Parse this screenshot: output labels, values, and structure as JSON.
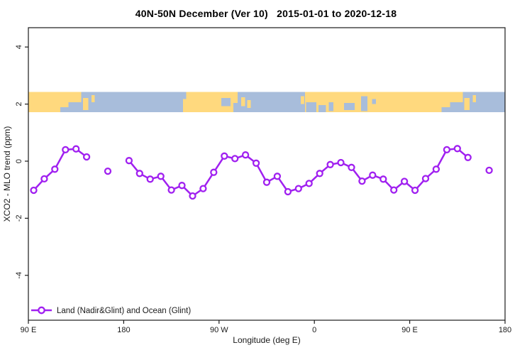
{
  "chart_data": {
    "type": "line",
    "title": "40N-50N December (Ver 10)   2015-01-01 to 2020-12-18",
    "xlabel": "Longitude (deg E)",
    "ylabel": "XCO2 - MLO trend (ppm)",
    "legend_label": "Land (Nadir&Glint) and Ocean (Glint)",
    "series_color": "#A020F0",
    "frame_color": "#1a1a1a",
    "x_axis": {
      "note": "axis wraps eastward from 90E through the dateline twice",
      "tick_lons": [
        90,
        180,
        270,
        360,
        450,
        540
      ],
      "tick_labels": [
        "90 E",
        "180",
        "90 W",
        "0",
        "90 E",
        "180"
      ],
      "lon_range": [
        90,
        540
      ]
    },
    "y_axis": {
      "tick_values": [
        4,
        2,
        0,
        -2,
        -4
      ],
      "tick_labels": [
        "4",
        "2",
        "0",
        "-2",
        "-4"
      ],
      "value_range": [
        -5.5,
        4.7
      ]
    },
    "series": {
      "name": "Land (Nadir&Glint) and Ocean (Glint)",
      "marker": "open-circle",
      "segments": [
        [
          [
            95,
            -1.02
          ],
          [
            105,
            -0.62
          ],
          [
            115,
            -0.28
          ],
          [
            125,
            0.4
          ],
          [
            135,
            0.43
          ],
          [
            145,
            0.15
          ]
        ],
        [
          [
            185,
            0.02
          ],
          [
            195,
            -0.43
          ],
          [
            205,
            -0.63
          ],
          [
            215,
            -0.53
          ],
          [
            225,
            -1.01
          ],
          [
            235,
            -0.85
          ],
          [
            245,
            -1.22
          ],
          [
            255,
            -0.96
          ],
          [
            265,
            -0.39
          ],
          [
            275,
            0.18
          ],
          [
            285,
            0.09
          ],
          [
            295,
            0.22
          ],
          [
            305,
            -0.07
          ],
          [
            315,
            -0.74
          ],
          [
            325,
            -0.53
          ],
          [
            335,
            -1.07
          ],
          [
            345,
            -0.96
          ],
          [
            355,
            -0.78
          ],
          [
            365,
            -0.43
          ],
          [
            375,
            -0.12
          ],
          [
            385,
            -0.05
          ],
          [
            395,
            -0.22
          ],
          [
            405,
            -0.7
          ],
          [
            415,
            -0.49
          ],
          [
            425,
            -0.63
          ],
          [
            435,
            -1.01
          ],
          [
            445,
            -0.71
          ],
          [
            455,
            -1.02
          ],
          [
            465,
            -0.61
          ],
          [
            475,
            -0.28
          ],
          [
            485,
            0.4
          ],
          [
            495,
            0.44
          ],
          [
            505,
            0.13
          ]
        ]
      ],
      "isolated_points": [
        [
          165,
          -0.35
        ],
        [
          525,
          -0.32
        ]
      ]
    },
    "map_band": {
      "description": "world coastline strip across the 40N-50N latitude band",
      "ppm_top": 2.42,
      "ppm_bottom": 1.72,
      "ocean_color": "#A8BDDB",
      "land_color": "#FFD97E",
      "land_segments": [
        [
          90,
          140
        ],
        [
          236,
          287.5
        ],
        [
          351,
          500
        ]
      ],
      "islands": [
        {
          "lon": [
            141.5,
            146.5
          ],
          "frac": [
            0.3,
            0.9
          ]
        },
        {
          "lon": [
            149.5,
            152.5
          ],
          "frac": [
            0.15,
            0.5
          ]
        },
        {
          "lon": [
            291,
            294.5
          ],
          "frac": [
            0.25,
            0.7
          ]
        },
        {
          "lon": [
            296.5,
            300
          ],
          "frac": [
            0.4,
            0.8
          ]
        },
        {
          "lon": [
            347,
            350.5
          ],
          "frac": [
            0.2,
            0.6
          ]
        },
        {
          "lon": [
            501.5,
            506.5
          ],
          "frac": [
            0.3,
            0.9
          ]
        },
        {
          "lon": [
            509.5,
            512.5
          ],
          "frac": [
            0.15,
            0.5
          ]
        }
      ],
      "water_patches": [
        {
          "lon": [
            128,
            140
          ],
          "frac": [
            0.5,
            1
          ]
        },
        {
          "lon": [
            120,
            128
          ],
          "frac": [
            0.75,
            1
          ]
        },
        {
          "lon": [
            236,
            239
          ],
          "frac": [
            0,
            0.35
          ]
        },
        {
          "lon": [
            272,
            281
          ],
          "frac": [
            0.3,
            0.7
          ]
        },
        {
          "lon": [
            283.5,
            287.5
          ],
          "frac": [
            0.55,
            1
          ]
        },
        {
          "lon": [
            352,
            362
          ],
          "frac": [
            0.5,
            1
          ]
        },
        {
          "lon": [
            364,
            371
          ],
          "frac": [
            0.65,
            1
          ]
        },
        {
          "lon": [
            373.5,
            378
          ],
          "frac": [
            0.5,
            0.95
          ]
        },
        {
          "lon": [
            388,
            398
          ],
          "frac": [
            0.55,
            0.9
          ]
        },
        {
          "lon": [
            404,
            410
          ],
          "frac": [
            0.2,
            0.95
          ]
        },
        {
          "lon": [
            414.5,
            418
          ],
          "frac": [
            0.35,
            0.6
          ]
        },
        {
          "lon": [
            488,
            500
          ],
          "frac": [
            0.5,
            1
          ]
        },
        {
          "lon": [
            480,
            488
          ],
          "frac": [
            0.75,
            1
          ]
        }
      ]
    }
  }
}
